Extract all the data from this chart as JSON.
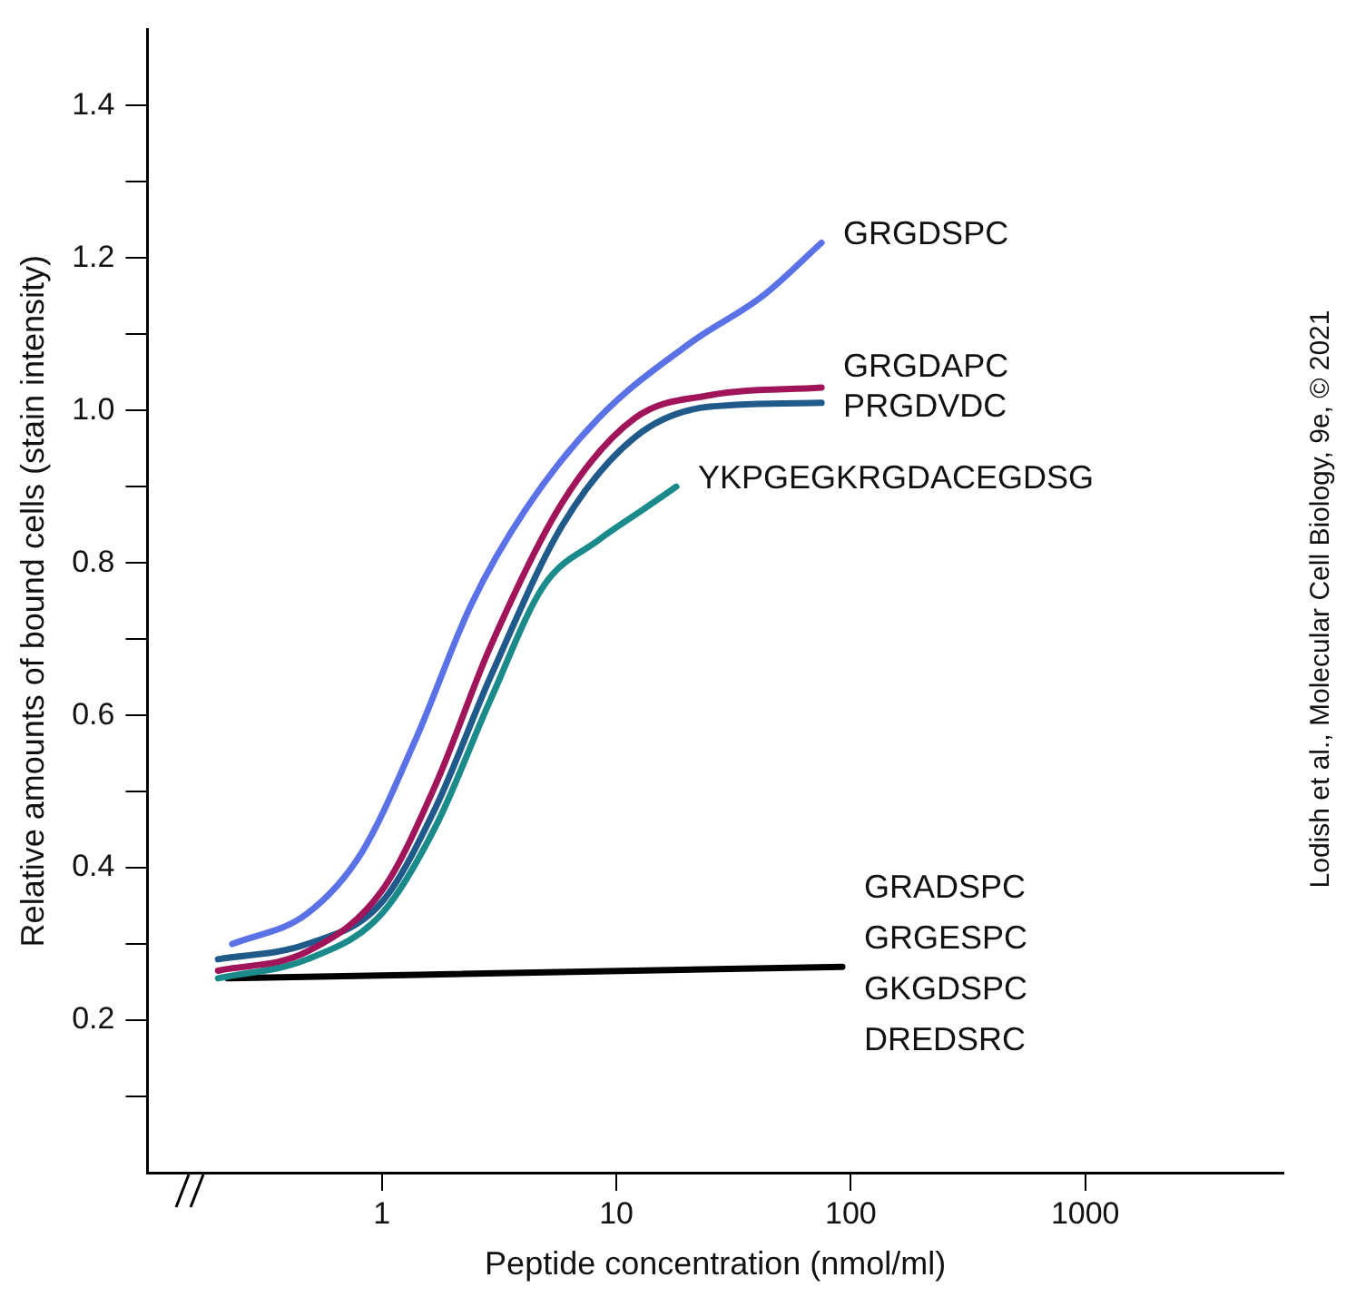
{
  "chart_data": {
    "type": "line",
    "xlabel": "Peptide concentration (nmol/ml)",
    "ylabel": "Relative amounts of bound cells (stain intensity)",
    "log": "x",
    "xlim": [
      0.1,
      7000
    ],
    "xticks": [
      1,
      10,
      100,
      1000
    ],
    "ylim": [
      0,
      1.5
    ],
    "yticks": [
      {
        "value": 0.1,
        "label": null
      },
      0.2,
      {
        "value": 0.3,
        "label": null
      },
      0.4,
      {
        "value": 0.5,
        "label": null
      },
      0.6,
      {
        "value": 0.7,
        "label": null
      },
      0.8,
      {
        "value": 0.9,
        "label": null
      },
      {
        "value": 1,
        "label": "1.0"
      },
      {
        "value": 1.1,
        "label": null
      },
      1.2,
      {
        "value": 1.3,
        "label": null
      },
      1.4
    ],
    "grid": false,
    "legend": false,
    "marker": "none",
    "line_style": "solid",
    "series": [
      {
        "name": "GRGDSPC",
        "color": "#5b72e6",
        "x": [
          0.23,
          0.48,
          0.82,
          1.4,
          2.4,
          4.1,
          8.4,
          21,
          42,
          75
        ],
        "values": [
          0.3,
          0.34,
          0.42,
          0.57,
          0.745,
          0.87,
          0.99,
          1.09,
          1.15,
          1.22
        ]
      },
      {
        "name": "GRGDAPC",
        "color": "#a0145a",
        "x": [
          0.2,
          0.48,
          1,
          1.7,
          2.9,
          5.9,
          12,
          25,
          75
        ],
        "values": [
          0.265,
          0.29,
          0.37,
          0.51,
          0.69,
          0.88,
          0.99,
          1.02,
          1.03
        ]
      },
      {
        "name": "PRGDVDC",
        "color": "#1f5a8a",
        "x": [
          0.2,
          0.48,
          1,
          1.7,
          2.9,
          5.9,
          12,
          25,
          75
        ],
        "values": [
          0.28,
          0.3,
          0.355,
          0.48,
          0.65,
          0.85,
          0.965,
          1.005,
          1.01
        ]
      },
      {
        "name": "YKPGEGKRGDACEGDSG",
        "color": "#1a8a8a",
        "x": [
          0.2,
          0.48,
          1,
          1.7,
          2.9,
          4.9,
          8.4,
          13,
          18
        ],
        "values": [
          0.255,
          0.28,
          0.34,
          0.455,
          0.62,
          0.77,
          0.83,
          0.87,
          0.9
        ]
      },
      {
        "color": "#000000",
        "x": [
          0.22,
          92
        ],
        "values": [
          0.255,
          0.27
        ]
      }
    ],
    "annotations": [
      "GRADSPC",
      "GRGESPC",
      "GKGDSPC",
      "DREDSRC",
      "Lodish et al., Molecular Cell Biology, 9e, © 2021"
    ]
  }
}
